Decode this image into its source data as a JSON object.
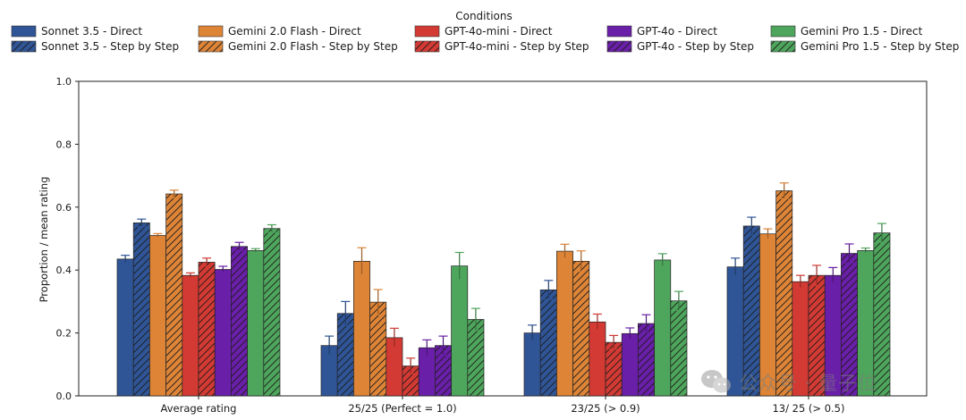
{
  "chart_data": {
    "type": "bar",
    "title": "",
    "xlabel": "",
    "ylabel": "Proportion / mean rating",
    "ylim": [
      0,
      1.0
    ],
    "yticks": [
      "0.0",
      "0.2",
      "0.4",
      "0.6",
      "0.8",
      "1.0"
    ],
    "grid": false,
    "legend": {
      "title": "Conditions",
      "placement": "top",
      "columns": 5
    },
    "categories": [
      "Average rating",
      "25/25 (Perfect = 1.0)",
      "23/25 (> 0.9)",
      "13/ 25 (> 0.5)"
    ],
    "series": [
      {
        "name": "Sonnet 3.5 - Direct",
        "color": "#2f5597",
        "hatch": false,
        "values": [
          0.435,
          0.16,
          0.2,
          0.41
        ],
        "errors": [
          0.012,
          0.03,
          0.025,
          0.028
        ]
      },
      {
        "name": "Sonnet 3.5 - Step by Step",
        "color": "#2f5597",
        "hatch": true,
        "values": [
          0.55,
          0.262,
          0.337,
          0.54
        ],
        "errors": [
          0.012,
          0.038,
          0.03,
          0.028
        ]
      },
      {
        "name": "Gemini 2.0 Flash - Direct",
        "color": "#dd8437",
        "hatch": false,
        "values": [
          0.51,
          0.428,
          0.46,
          0.515
        ],
        "errors": [
          0.006,
          0.043,
          0.022,
          0.016
        ]
      },
      {
        "name": "Gemini 2.0 Flash - Step by Step",
        "color": "#dd8437",
        "hatch": true,
        "values": [
          0.642,
          0.298,
          0.428,
          0.652
        ],
        "errors": [
          0.012,
          0.04,
          0.033,
          0.025
        ]
      },
      {
        "name": "GPT-4o-mini - Direct",
        "color": "#d33a33",
        "hatch": false,
        "values": [
          0.383,
          0.185,
          0.235,
          0.363
        ],
        "errors": [
          0.008,
          0.03,
          0.025,
          0.02
        ]
      },
      {
        "name": "GPT-4o-mini - Step by Step",
        "color": "#d33a33",
        "hatch": true,
        "values": [
          0.425,
          0.095,
          0.17,
          0.383
        ],
        "errors": [
          0.013,
          0.025,
          0.022,
          0.032
        ]
      },
      {
        "name": "GPT-4o - Direct",
        "color": "#6a1fa8",
        "hatch": false,
        "values": [
          0.402,
          0.153,
          0.198,
          0.383
        ],
        "errors": [
          0.01,
          0.025,
          0.018,
          0.025
        ]
      },
      {
        "name": "GPT-4o - Step by Step",
        "color": "#6a1fa8",
        "hatch": true,
        "values": [
          0.475,
          0.16,
          0.23,
          0.453
        ],
        "errors": [
          0.013,
          0.03,
          0.028,
          0.03
        ]
      },
      {
        "name": "Gemini Pro 1.5 - Direct",
        "color": "#4ea55c",
        "hatch": false,
        "values": [
          0.462,
          0.413,
          0.432,
          0.462
        ],
        "errors": [
          0.006,
          0.043,
          0.02,
          0.008
        ]
      },
      {
        "name": "Gemini Pro 1.5 - Step by Step",
        "color": "#4ea55c",
        "hatch": true,
        "values": [
          0.532,
          0.243,
          0.302,
          0.518
        ],
        "errors": [
          0.012,
          0.035,
          0.03,
          0.03
        ]
      }
    ]
  },
  "watermark": {
    "text": "公众号 · 量子位",
    "icon": "wechat-icon"
  }
}
